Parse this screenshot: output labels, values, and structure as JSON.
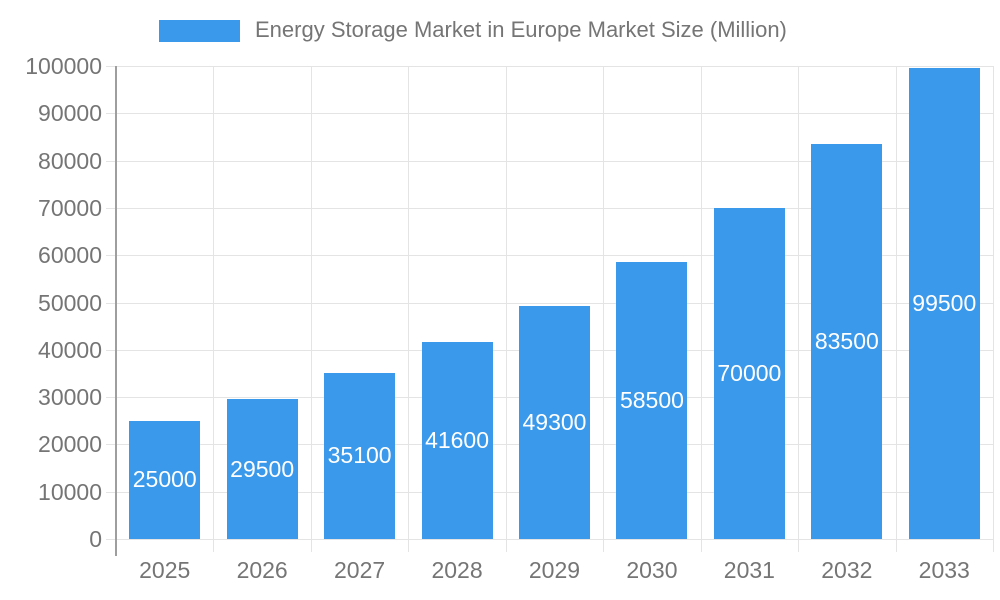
{
  "legend": {
    "label": "Energy Storage Market in Europe Market Size (Million)"
  },
  "chart_data": {
    "type": "bar",
    "title": "Energy Storage Market in Europe Market Size (Million)",
    "categories": [
      "2025",
      "2026",
      "2027",
      "2028",
      "2029",
      "2030",
      "2031",
      "2032",
      "2033"
    ],
    "values": [
      25000,
      29500,
      35100,
      41600,
      49300,
      58500,
      70000,
      83500,
      99500
    ],
    "xlabel": "",
    "ylabel": "",
    "ylim": [
      0,
      100000
    ],
    "ytick_step": 10000,
    "yticks": [
      0,
      10000,
      20000,
      30000,
      40000,
      50000,
      60000,
      70000,
      80000,
      90000,
      100000
    ],
    "grid": true,
    "legend_position": "top",
    "value_labels": "inside-center",
    "colors": {
      "bar": "#3B99EC",
      "bar_value_text": "#FFFFFF",
      "axis_text": "#757575",
      "grid_line": "#E4E4E4",
      "axis_line": "#9E9E9E",
      "background": "#FFFFFF"
    }
  }
}
